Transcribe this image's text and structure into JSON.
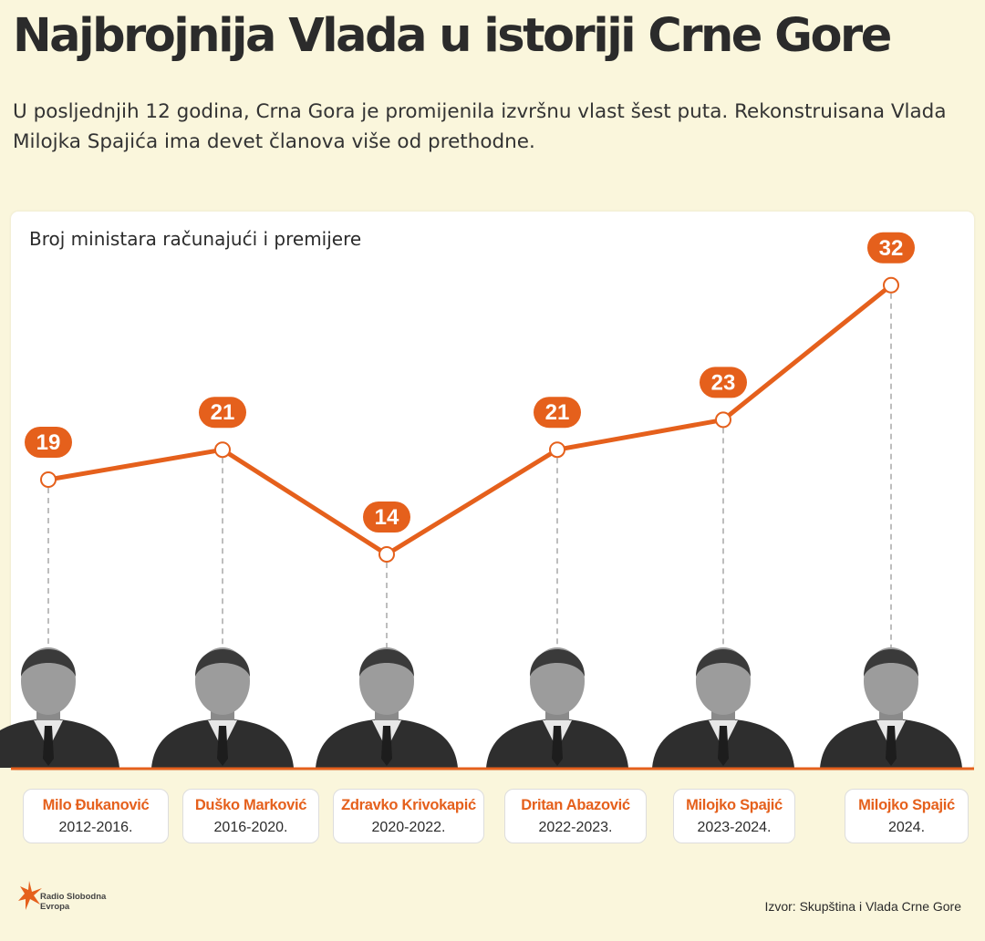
{
  "title": "Najbrojnija Vlada u istoriji Crne Gore",
  "subtitle": "U posljednjih 12 godina, Crna Gora je promijenila izvršnu vlast šest puta. Rekonstruisana Vlada Milojka Spajića ima devet članova više od prethodne.",
  "chart_label": "Broj ministara računajući i premijere",
  "source": "Izvor: Skupština i Vlada Crne Gore",
  "logo": {
    "line1": "Radio Slobodna",
    "line2": "Evropa"
  },
  "colors": {
    "accent": "#e5601c",
    "background": "#faf6dc",
    "panel": "#ffffff"
  },
  "chart_data": {
    "type": "line",
    "categories": [
      "Milo Đukanović",
      "Duško Marković",
      "Zdravko Krivokapić",
      "Dritan Abazović",
      "Milojko Spajić",
      "Milojko Spajić"
    ],
    "periods": [
      "2012-2016.",
      "2016-2020.",
      "2020-2022.",
      "2022-2023.",
      "2023-2024.",
      "2024."
    ],
    "values": [
      19,
      21,
      14,
      21,
      23,
      32
    ],
    "data_labels": [
      "19",
      "21",
      "14",
      "21",
      "23",
      "32"
    ],
    "ylabel": "Broj ministara računajući i premijere",
    "grid": false
  }
}
